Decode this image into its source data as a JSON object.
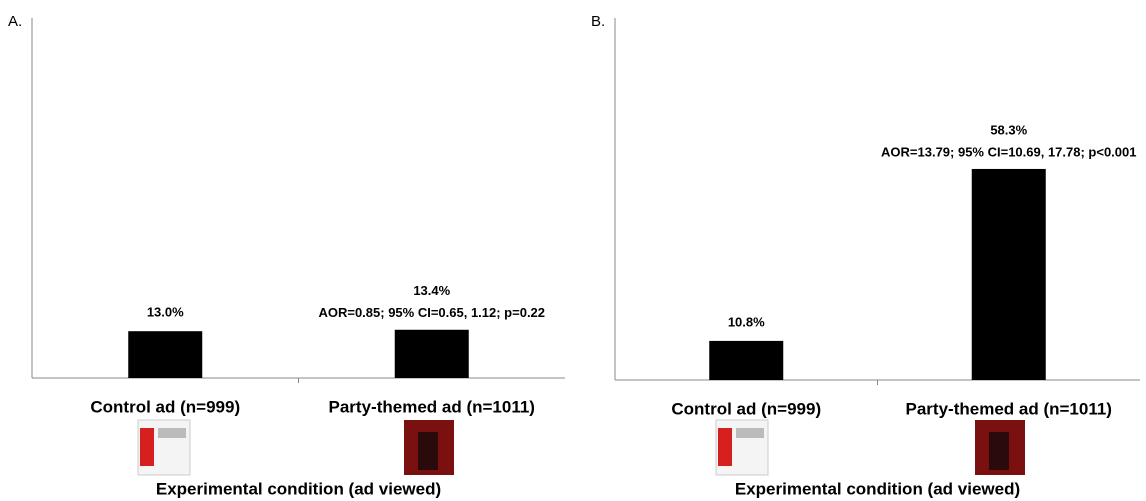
{
  "chart_data": [
    {
      "type": "bar",
      "title": "A.",
      "categories": [
        "Control ad (n=999)",
        "Party-themed ad (n=1011)"
      ],
      "values": [
        13.0,
        13.4
      ],
      "value_labels": [
        "13.0%",
        "13.4%"
      ],
      "annotations": [
        "AOR=0.85; 95% CI=0.65, 1.12; p=0.22"
      ],
      "xlabel": "Experimental condition (ad viewed)",
      "ylim": [
        0,
        100
      ],
      "color": "#000000"
    },
    {
      "type": "bar",
      "title": "B.",
      "categories": [
        "Control ad (n=999)",
        "Party-themed ad (n=1011)"
      ],
      "values": [
        10.8,
        58.3
      ],
      "value_labels": [
        "10.8%",
        "58.3%"
      ],
      "annotations": [
        "AOR=13.79; 95% CI=10.69, 17.78; p<0.001"
      ],
      "xlabel": "Experimental condition (ad viewed)",
      "ylim": [
        0,
        100
      ],
      "color": "#000000"
    }
  ]
}
